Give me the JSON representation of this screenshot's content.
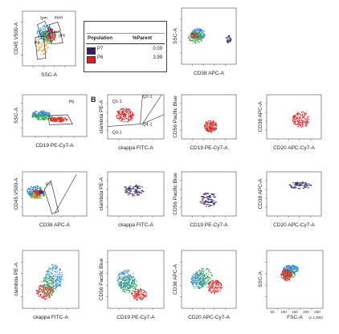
{
  "legend": {
    "col_population": "Population",
    "col_parent": "%Parent",
    "rows": [
      {
        "name": "P7",
        "value": "0.09",
        "color": "#3a1f5c"
      },
      {
        "name": "P6",
        "value": "3.99",
        "color": "#e02020"
      }
    ]
  },
  "figure_letter": "B",
  "colors": {
    "red": "#e52020",
    "blue": "#2a8ad8",
    "green": "#37a44a",
    "purple": "#3d2a6e",
    "orange": "#f2a23a",
    "gate": "#333333"
  },
  "chart_data": [
    {
      "type": "scatter",
      "id": "p0",
      "xlabel": "SSC-A",
      "ylabel": "CD45 V500-A",
      "gates": [
        "lym",
        "mon",
        "gra",
        "P4"
      ],
      "clusters": [
        "blue",
        "green",
        "red",
        "orange"
      ]
    },
    {
      "type": "scatter",
      "id": "p1",
      "xlabel": "CD38 APC-A",
      "ylabel": "SSC-A",
      "gates": [],
      "clusters": [
        "blue",
        "green",
        "purple"
      ]
    },
    {
      "type": "scatter",
      "id": "p2",
      "xlabel": "CD19 PE-Cy7-A",
      "ylabel": "SSC-A",
      "gates": [
        "P6"
      ],
      "clusters": [
        "blue",
        "green",
        "red"
      ]
    },
    {
      "type": "scatter",
      "id": "p3",
      "xlabel": "ckappa FITC-A",
      "ylabel": "clambda PE-A",
      "gates": [
        "Q2-1",
        "Q1-1",
        "Q3-1",
        "Q4-1"
      ],
      "clusters": [
        "red"
      ]
    },
    {
      "type": "scatter",
      "id": "p4",
      "xlabel": "CD19 PE-Cy7-A",
      "ylabel": "CD56 Pacific Blue",
      "gates": [],
      "clusters": [
        "red"
      ]
    },
    {
      "type": "scatter",
      "id": "p5",
      "xlabel": "CD20 APC-Cy7-A",
      "ylabel": "CD38 APC-A",
      "gates": [],
      "clusters": [
        "red"
      ]
    },
    {
      "type": "scatter",
      "id": "p6",
      "xlabel": "CD38 APC-A",
      "ylabel": "CD45 V500-A",
      "gates": [
        "P7"
      ],
      "clusters": [
        "blue",
        "green",
        "red",
        "orange"
      ]
    },
    {
      "type": "scatter",
      "id": "p7",
      "xlabel": "ckappa FITC-A",
      "ylabel": "clambda PE-A",
      "gates": [],
      "clusters": [
        "purple"
      ]
    },
    {
      "type": "scatter",
      "id": "p8",
      "xlabel": "CD19 PE-Cy7-A",
      "ylabel": "CD56 Pacific Blue",
      "gates": [],
      "clusters": [
        "purple"
      ]
    },
    {
      "type": "scatter",
      "id": "p9",
      "xlabel": "CD20 APC-Cy7-A",
      "ylabel": "CD38 APC-A",
      "gates": [],
      "clusters": [
        "purple"
      ]
    },
    {
      "type": "scatter",
      "id": "p10",
      "xlabel": "ckappa FITC-A",
      "ylabel": "clambda PE-A",
      "gates": [],
      "clusters": [
        "blue",
        "green",
        "red"
      ]
    },
    {
      "type": "scatter",
      "id": "p11",
      "xlabel": "CD19 PE-Cy7-A",
      "ylabel": "CD56 Pacific Blue",
      "gates": [],
      "clusters": [
        "blue",
        "green",
        "red"
      ]
    },
    {
      "type": "scatter",
      "id": "p12",
      "xlabel": "CD20 APC-Cy7-A",
      "ylabel": "CD38 APC-A",
      "gates": [],
      "clusters": [
        "blue",
        "green",
        "red"
      ]
    },
    {
      "type": "scatter",
      "id": "p13",
      "xlabel": "FSC-A",
      "ylabel": "SSC-A",
      "x_ticks": [
        "50",
        "100",
        "150",
        "200",
        "250"
      ],
      "x_unit": "(x 1,000)",
      "gates": [],
      "clusters": [
        "blue",
        "green",
        "red"
      ]
    }
  ]
}
